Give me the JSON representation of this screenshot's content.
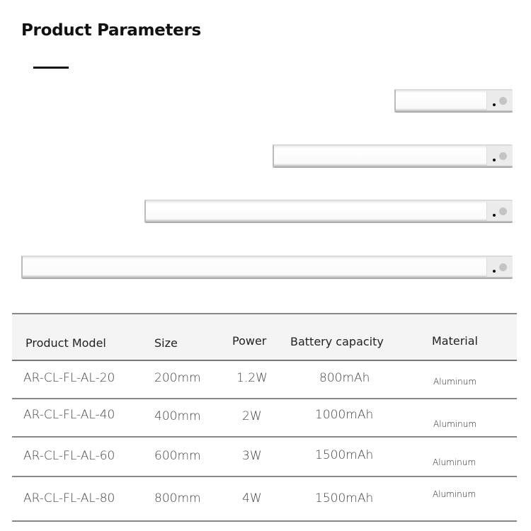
{
  "title": "Product Parameters",
  "bars": [
    {
      "size": "200mm"
    },
    {
      "size": "400mm"
    },
    {
      "size": "600mm"
    },
    {
      "size": "800mm"
    }
  ],
  "table": {
    "headers": [
      "Product Model",
      "Size",
      "Power",
      "Battery capacity",
      "Material"
    ],
    "rows": [
      [
        "AR-CL-FL-AL-20",
        "200mm",
        "1.2W",
        "800mAh",
        "Aluminum"
      ],
      [
        "AR-CL-FL-AL-40",
        "400mm",
        "2W",
        "1000mAh",
        "Aluminum"
      ],
      [
        "AR-CL-FL-AL-60",
        "600mm",
        "3W",
        "1500mAh",
        "Aluminum"
      ],
      [
        "AR-CL-FL-AL-80",
        "800mm",
        "4W",
        "1500mAh",
        "Aluminum"
      ]
    ]
  },
  "colors": {
    "header_bg": "#f4f4f4",
    "rule": "#888888"
  }
}
